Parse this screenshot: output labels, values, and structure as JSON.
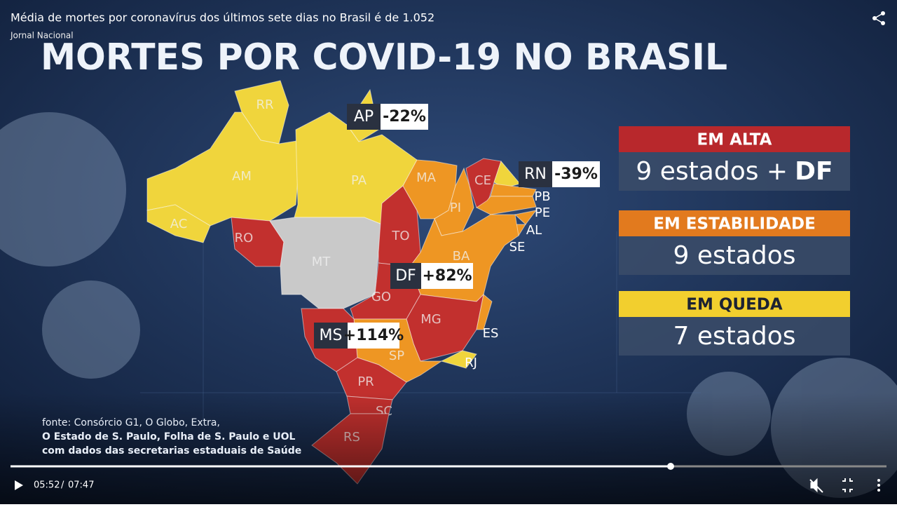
{
  "player": {
    "title": "Média de mortes por coronavírus dos últimos sete dias no Brasil é de 1.052",
    "channel": "Jornal Nacional",
    "current_time": "05:52",
    "separator": "/",
    "duration": "07:47"
  },
  "graphic": {
    "title": "MORTES POR COVID-19 NO BRASIL",
    "states": [
      {
        "label": "RR",
        "color": "#f0d53c"
      },
      {
        "label": "AP",
        "color": "#f0d53c"
      },
      {
        "label": "AM",
        "color": "#f0d53c"
      },
      {
        "label": "PA",
        "color": "#f0d53c"
      },
      {
        "label": "AC",
        "color": "#f0d53c"
      },
      {
        "label": "RO",
        "color": "#c2302e"
      },
      {
        "label": "MT",
        "color": "#c9c9c9"
      },
      {
        "label": "TO",
        "color": "#c2302e"
      },
      {
        "label": "MA",
        "color": "#ee9623"
      },
      {
        "label": "PI",
        "color": "#ee9623"
      },
      {
        "label": "CE",
        "color": "#c2302e"
      },
      {
        "label": "RN",
        "color": "#f0d53c"
      },
      {
        "label": "PB",
        "color": "#ee9623"
      },
      {
        "label": "PE",
        "color": "#ee9623"
      },
      {
        "label": "AL",
        "color": "#ee9623"
      },
      {
        "label": "SE",
        "color": "#ee9623"
      },
      {
        "label": "BA",
        "color": "#ee9623"
      },
      {
        "label": "GO",
        "color": "#c2302e"
      },
      {
        "label": "MG",
        "color": "#c2302e"
      },
      {
        "label": "ES",
        "color": "#ee9623"
      },
      {
        "label": "RJ",
        "color": "#f0d53c"
      },
      {
        "label": "SP",
        "color": "#ee9623"
      },
      {
        "label": "MS",
        "color": "#c2302e"
      },
      {
        "label": "PR",
        "color": "#c2302e"
      },
      {
        "label": "SC",
        "color": "#c2302e"
      },
      {
        "label": "RS",
        "color": "#c2302e"
      }
    ],
    "badges": [
      {
        "state": "AP",
        "change": "-22%"
      },
      {
        "state": "RN",
        "change": "-39%"
      },
      {
        "state": "DF",
        "change": "+82%"
      },
      {
        "state": "MS",
        "change": "+114%"
      }
    ],
    "legend": [
      {
        "label": "EM ALTA",
        "count": "9 estados +",
        "extra": "DF",
        "color": "#b8282c"
      },
      {
        "label": "EM ESTABILIDADE",
        "count": "9 estados",
        "color": "#e27a1e"
      },
      {
        "label": "EM QUEDA",
        "count": "7 estados",
        "color": "#f2cf2e"
      }
    ],
    "source": [
      "fonte: Consórcio G1, O Globo, Extra,",
      "O Estado de S. Paulo, Folha de S. Paulo e UOL",
      "com dados das secretarias estaduais de Saúde"
    ]
  }
}
